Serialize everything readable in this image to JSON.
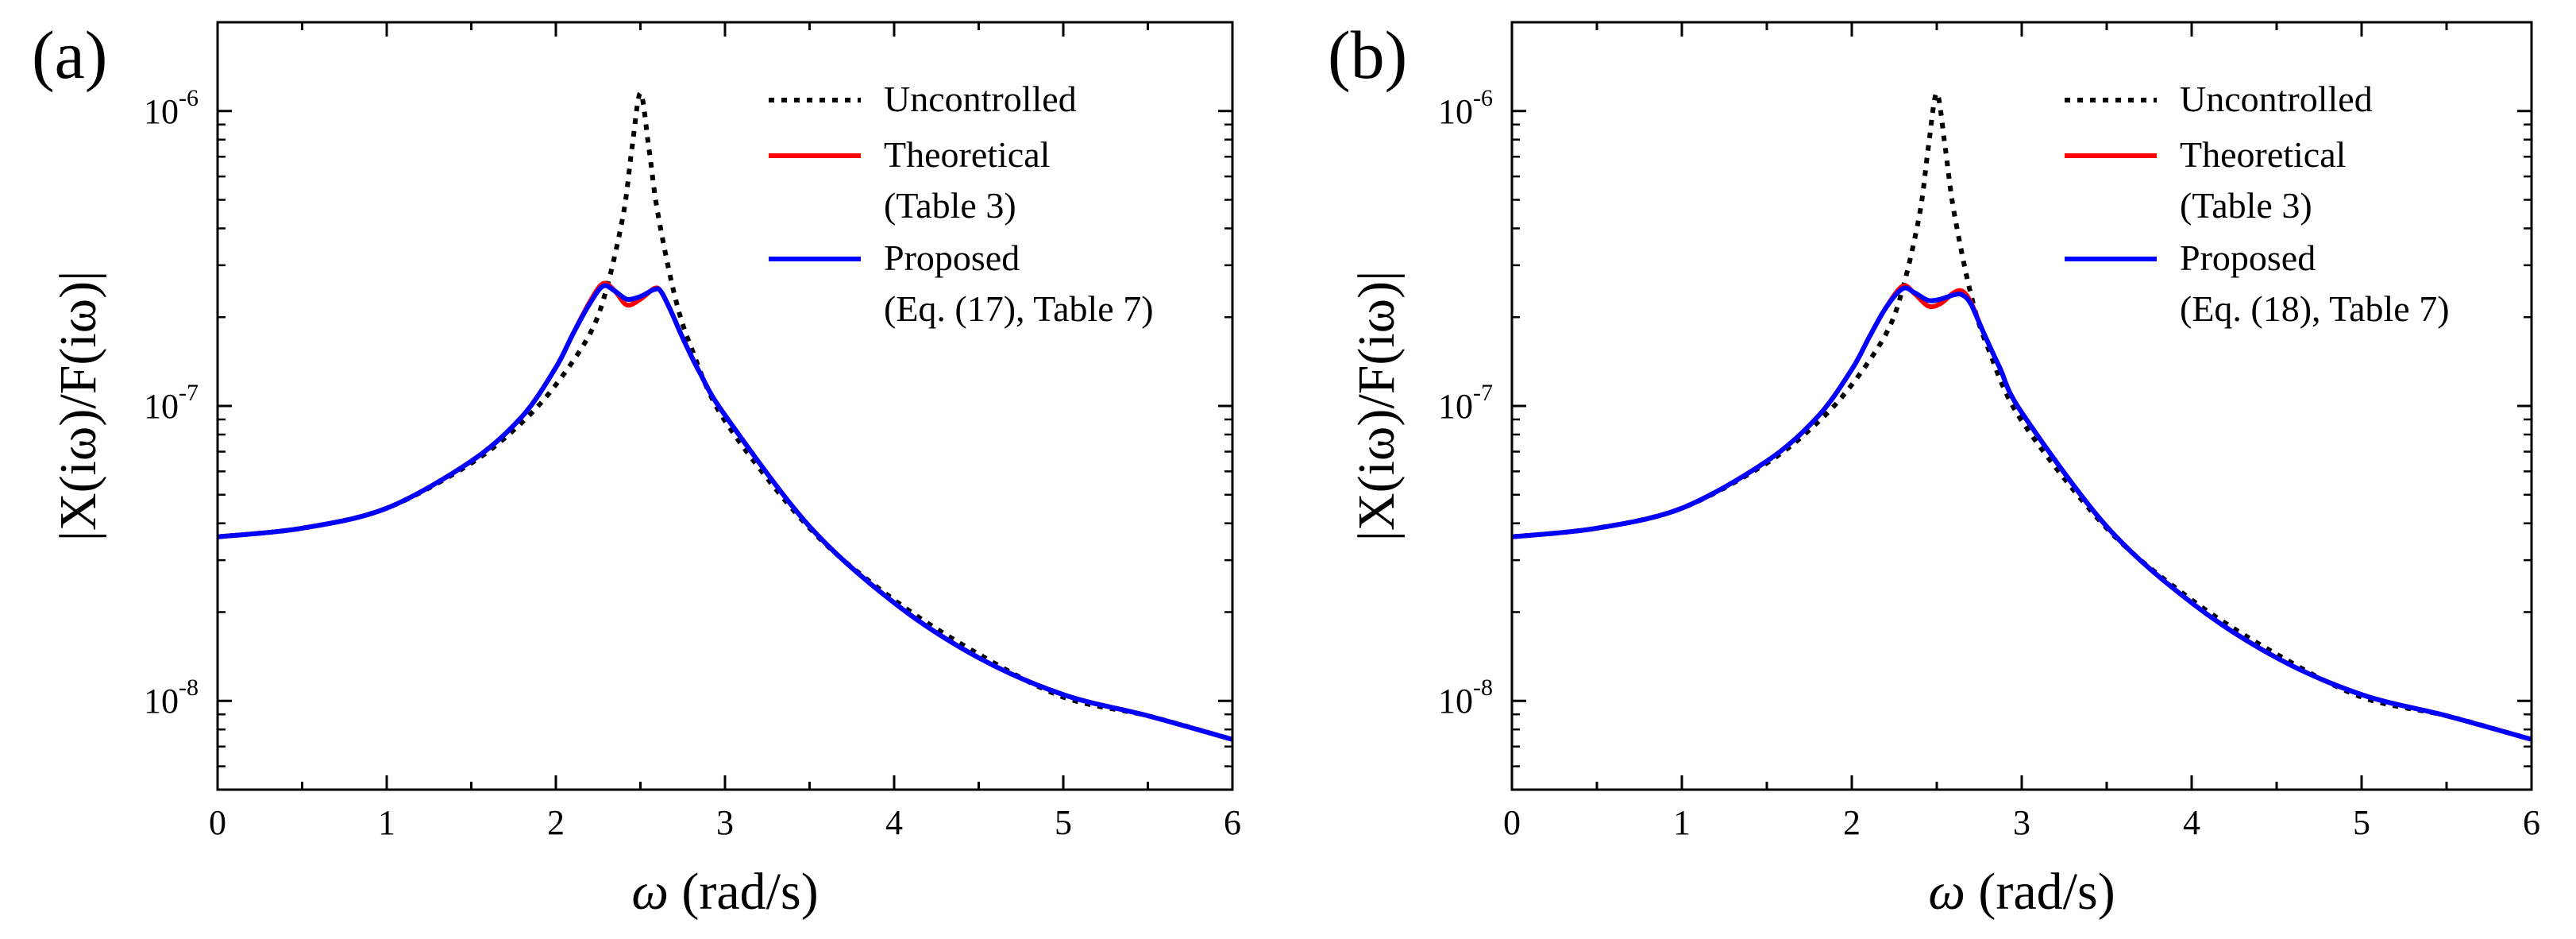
{
  "chart_data": [
    {
      "type": "line",
      "panel_label": "(a)",
      "xlabel": "ω (rad/s)",
      "ylabel": "|X(iω)/F(iω)|",
      "xlim": [
        0,
        6
      ],
      "ylim": [
        5e-09,
        2e-06
      ],
      "yscale": "log",
      "xticks": [
        0,
        1,
        2,
        3,
        4,
        5,
        6
      ],
      "xtick_labels": [
        "0",
        "1",
        "2",
        "3",
        "4",
        "5",
        "6"
      ],
      "yticks": [
        1e-08,
        1e-07,
        1e-06
      ],
      "ytick_labels": [
        {
          "base": "10",
          "exp": "-8"
        },
        {
          "base": "10",
          "exp": "-7"
        },
        {
          "base": "10",
          "exp": "-6"
        }
      ],
      "legend_position": "top-right",
      "series": [
        {
          "name": "Uncontrolled",
          "color": "#000000",
          "style": "dotted",
          "x": [
            0,
            0.5,
            1,
            1.5,
            1.8,
            2.0,
            2.2,
            2.3,
            2.4,
            2.45,
            2.5,
            2.55,
            2.6,
            2.7,
            2.8,
            3.0,
            3.5,
            4,
            4.5,
            5,
            5.5,
            6
          ],
          "values": [
            3.6e-08,
            3.85e-08,
            4.5e-08,
            6.4e-08,
            8.8e-08,
            1.18e-07,
            1.75e-07,
            2.5e-07,
            4.5e-07,
            7.5e-07,
            1.15e-06,
            7.5e-07,
            4.6e-07,
            2.4e-07,
            1.58e-07,
            8.9e-08,
            3.85e-08,
            2.2e-08,
            1.44e-08,
            1.03e-08,
            8.9e-09,
            7.4e-09
          ]
        },
        {
          "name": "Theoretical",
          "legend_note": "(Table 3)",
          "color": "#ff0000",
          "style": "solid",
          "x": [
            0,
            0.5,
            1,
            1.5,
            1.8,
            2.0,
            2.1,
            2.2,
            2.28,
            2.35,
            2.42,
            2.5,
            2.58,
            2.62,
            2.68,
            2.75,
            2.85,
            3.0,
            3.5,
            4,
            4.5,
            5,
            5.5,
            6
          ],
          "values": [
            3.6e-08,
            3.85e-08,
            4.5e-08,
            6.5e-08,
            9.2e-08,
            1.35e-07,
            1.75e-07,
            2.25e-07,
            2.6e-07,
            2.45e-07,
            2.2e-07,
            2.3e-07,
            2.5e-07,
            2.45e-07,
            2.1e-07,
            1.7e-07,
            1.3e-07,
            9.3e-08,
            3.9e-08,
            2.15e-08,
            1.4e-08,
            1.05e-08,
            8.9e-09,
            7.4e-09
          ]
        },
        {
          "name": "Proposed",
          "legend_note": "(Eq. (17), Table 7)",
          "color": "#0000ff",
          "style": "solid",
          "x": [
            0,
            0.5,
            1,
            1.5,
            1.8,
            2.0,
            2.1,
            2.2,
            2.28,
            2.35,
            2.42,
            2.5,
            2.58,
            2.62,
            2.68,
            2.75,
            2.85,
            3.0,
            3.5,
            4,
            4.5,
            5,
            5.5,
            6
          ],
          "values": [
            3.6e-08,
            3.85e-08,
            4.5e-08,
            6.5e-08,
            9.2e-08,
            1.35e-07,
            1.75e-07,
            2.22e-07,
            2.55e-07,
            2.45e-07,
            2.3e-07,
            2.35e-07,
            2.48e-07,
            2.45e-07,
            2.1e-07,
            1.7e-07,
            1.3e-07,
            9.3e-08,
            3.9e-08,
            2.15e-08,
            1.4e-08,
            1.05e-08,
            8.9e-09,
            7.4e-09
          ]
        }
      ]
    },
    {
      "type": "line",
      "panel_label": "(b)",
      "xlabel": "ω (rad/s)",
      "ylabel": "|X(iω)/F(iω)|",
      "xlim": [
        0,
        6
      ],
      "ylim": [
        5e-09,
        2e-06
      ],
      "yscale": "log",
      "xticks": [
        0,
        1,
        2,
        3,
        4,
        5,
        6
      ],
      "xtick_labels": [
        "0",
        "1",
        "2",
        "3",
        "4",
        "5",
        "6"
      ],
      "yticks": [
        1e-08,
        1e-07,
        1e-06
      ],
      "ytick_labels": [
        {
          "base": "10",
          "exp": "-8"
        },
        {
          "base": "10",
          "exp": "-7"
        },
        {
          "base": "10",
          "exp": "-6"
        }
      ],
      "legend_position": "top-right",
      "series": [
        {
          "name": "Uncontrolled",
          "color": "#000000",
          "style": "dotted",
          "x": [
            0,
            0.5,
            1,
            1.5,
            1.8,
            2.0,
            2.2,
            2.3,
            2.4,
            2.45,
            2.5,
            2.55,
            2.6,
            2.7,
            2.8,
            3.0,
            3.5,
            4,
            4.5,
            5,
            5.5,
            6
          ],
          "values": [
            3.6e-08,
            3.85e-08,
            4.5e-08,
            6.4e-08,
            8.8e-08,
            1.18e-07,
            1.75e-07,
            2.5e-07,
            4.5e-07,
            7.5e-07,
            1.15e-06,
            7.5e-07,
            4.6e-07,
            2.4e-07,
            1.58e-07,
            8.9e-08,
            3.85e-08,
            2.2e-08,
            1.44e-08,
            1.03e-08,
            8.9e-09,
            7.4e-09
          ]
        },
        {
          "name": "Theoretical",
          "legend_note": "(Table 3)",
          "color": "#ff0000",
          "style": "solid",
          "x": [
            0,
            0.5,
            1,
            1.5,
            1.8,
            2.0,
            2.1,
            2.2,
            2.3,
            2.37,
            2.45,
            2.52,
            2.6,
            2.65,
            2.7,
            2.77,
            2.87,
            3.0,
            3.5,
            4,
            4.5,
            5,
            5.5,
            6
          ],
          "values": [
            3.6e-08,
            3.85e-08,
            4.5e-08,
            6.5e-08,
            9.2e-08,
            1.33e-07,
            1.7e-07,
            2.15e-07,
            2.55e-07,
            2.4e-07,
            2.18e-07,
            2.22e-07,
            2.42e-07,
            2.45e-07,
            2.25e-07,
            1.8e-07,
            1.35e-07,
            9.5e-08,
            3.9e-08,
            2.15e-08,
            1.4e-08,
            1.05e-08,
            8.9e-09,
            7.4e-09
          ]
        },
        {
          "name": "Proposed",
          "legend_note": "(Eq. (18), Table 7)",
          "color": "#0000ff",
          "style": "solid",
          "x": [
            0,
            0.5,
            1,
            1.5,
            1.8,
            2.0,
            2.1,
            2.2,
            2.3,
            2.37,
            2.45,
            2.52,
            2.6,
            2.65,
            2.7,
            2.77,
            2.87,
            3.0,
            3.5,
            4,
            4.5,
            5,
            5.5,
            6
          ],
          "values": [
            3.6e-08,
            3.85e-08,
            4.5e-08,
            6.5e-08,
            9.2e-08,
            1.33e-07,
            1.7e-07,
            2.15e-07,
            2.5e-07,
            2.42e-07,
            2.28e-07,
            2.3e-07,
            2.38e-07,
            2.38e-07,
            2.22e-07,
            1.8e-07,
            1.35e-07,
            9.5e-08,
            3.9e-08,
            2.15e-08,
            1.4e-08,
            1.05e-08,
            8.9e-09,
            7.4e-09
          ]
        }
      ]
    }
  ]
}
